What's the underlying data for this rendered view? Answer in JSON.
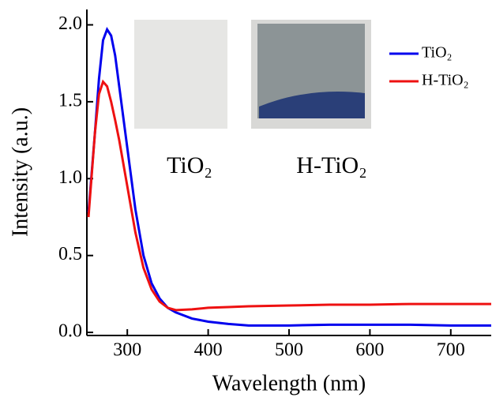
{
  "chart_data": {
    "type": "line",
    "x_label": "Wavelength (nm)",
    "y_label": "Intensity (a.u.)",
    "x": [
      252,
      260,
      265,
      270,
      275,
      280,
      285,
      290,
      300,
      310,
      320,
      330,
      340,
      350,
      360,
      380,
      400,
      425,
      450,
      500,
      550,
      600,
      650,
      700,
      750
    ],
    "series": [
      {
        "name": "TiO₂",
        "color": "#0000ee",
        "values": [
          0.78,
          1.3,
          1.65,
          1.9,
          1.97,
          1.93,
          1.8,
          1.6,
          1.2,
          0.8,
          0.5,
          0.32,
          0.22,
          0.16,
          0.13,
          0.09,
          0.07,
          0.055,
          0.045,
          0.045,
          0.05,
          0.05,
          0.05,
          0.045,
          0.045
        ]
      },
      {
        "name": "H-TiO₂",
        "color": "#ee1111",
        "values": [
          0.75,
          1.3,
          1.55,
          1.63,
          1.6,
          1.5,
          1.38,
          1.25,
          0.95,
          0.65,
          0.42,
          0.28,
          0.2,
          0.16,
          0.145,
          0.15,
          0.16,
          0.165,
          0.17,
          0.175,
          0.18,
          0.18,
          0.185,
          0.185,
          0.185
        ]
      }
    ],
    "annotations": [
      "TiO₂",
      "H-TiO₂"
    ],
    "xlim": [
      250,
      750
    ],
    "xticks": [
      300,
      400,
      500,
      600,
      700
    ],
    "ylim": [
      -0.02,
      2.1
    ],
    "yticks": [
      {
        "value": 0,
        "label": "0.0"
      },
      {
        "value": 0.5,
        "label": "0.5"
      },
      {
        "value": 1,
        "label": "1.0"
      },
      {
        "value": 1.5,
        "label": "1.5"
      },
      {
        "value": 2,
        "label": "2.0"
      }
    ],
    "legend": "upper right"
  }
}
